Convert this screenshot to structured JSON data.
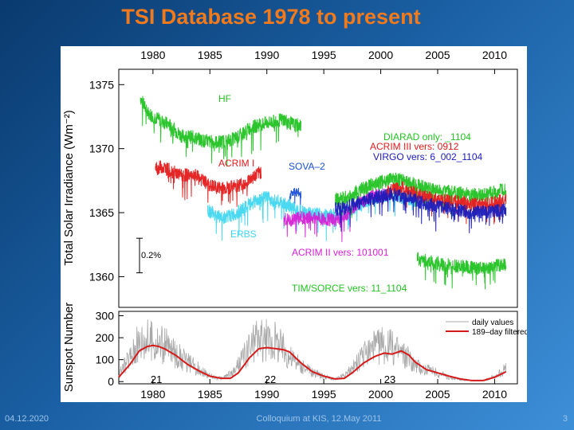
{
  "slide": {
    "title": "TSI Database 1978 to present",
    "footer_left": "04.12.2020",
    "footer_center": "Colloquium at KIS, 12.May 2011",
    "footer_right": "3"
  },
  "chart_data": [
    {
      "type": "line",
      "title": "",
      "xlabel": "",
      "ylabel": "Total Solar Irradiance (Wm⁻²)",
      "xlim": [
        1977,
        2012
      ],
      "ylim": [
        1357.6,
        1376.2
      ],
      "x_ticks": [
        1980,
        1985,
        1990,
        1995,
        2000,
        2005,
        2010
      ],
      "y_ticks": [
        1360,
        1365,
        1370,
        1375
      ],
      "scale_bar_label": "0.2%",
      "series": [
        {
          "name": "HF",
          "label": "HF",
          "color": "#22c222",
          "x": [
            1978.9,
            1979.5,
            1980.5,
            1981.5,
            1982.5,
            1983.5,
            1984.5,
            1985.5,
            1986.5,
            1987.5,
            1988.5,
            1989.5,
            1990.5,
            1991.5,
            1992.5,
            1993.0
          ],
          "values": [
            1374.0,
            1372.8,
            1372.3,
            1371.8,
            1371.0,
            1370.9,
            1370.6,
            1370.5,
            1370.6,
            1370.9,
            1371.6,
            1371.9,
            1372.1,
            1372.3,
            1371.8,
            1371.9
          ]
        },
        {
          "name": "ACRIM I",
          "label": "ACRIM I",
          "color": "#e31a1a",
          "x": [
            1980.2,
            1980.8,
            1981.5,
            1982.5,
            1983.5,
            1984.2,
            1985.0,
            1986.0,
            1987.0,
            1988.0,
            1989.0,
            1989.5
          ],
          "values": [
            1368.4,
            1368.6,
            1368.3,
            1367.9,
            1368.0,
            1367.6,
            1367.1,
            1366.9,
            1367.0,
            1367.3,
            1367.9,
            1368.2
          ]
        },
        {
          "name": "SOVA-2",
          "label": "SOVA–2",
          "color": "#1a4fd6",
          "x": [
            1992.0,
            1992.5,
            1993.0
          ],
          "values": [
            1366.4,
            1366.6,
            1366.5
          ]
        },
        {
          "name": "ERBS",
          "label": "ERBS",
          "color": "#41d6f0",
          "x": [
            1984.8,
            1986.0,
            1987.0,
            1988.0,
            1989.0,
            1990.0,
            1991.0,
            1992.0,
            1993.0,
            1994.0,
            1995.0,
            1996.0,
            1997.0,
            1998.0,
            1999.0,
            2000.0,
            2001.0,
            2002.0,
            2003.0
          ],
          "values": [
            1365.2,
            1364.6,
            1364.8,
            1365.3,
            1365.9,
            1366.2,
            1365.8,
            1365.5,
            1365.1,
            1364.9,
            1364.8,
            1364.8,
            1365.0,
            1365.5,
            1366.0,
            1366.3,
            1366.4,
            1366.2,
            1366.0
          ]
        },
        {
          "name": "ACRIM II",
          "label": "ACRIM II vers: 101001",
          "color": "#d520d5",
          "x": [
            1991.5,
            1992.0,
            1993.0,
            1994.0,
            1995.0,
            1996.0,
            1997.0,
            1998.0,
            1999.0,
            2000.0,
            2000.7
          ],
          "values": [
            1364.5,
            1364.4,
            1364.6,
            1364.6,
            1364.5,
            1364.4,
            1364.9,
            1365.7,
            1366.2,
            1366.5,
            1366.3
          ]
        },
        {
          "name": "DIARAD",
          "label": "DIARAD only: _1104",
          "color": "#22c222",
          "x": [
            1996.0,
            1997.0,
            1998.0,
            1999.0,
            2000.0,
            2001.0,
            2002.0,
            2003.0,
            2004.0,
            2005.0,
            2006.0,
            2007.0,
            2008.0,
            2009.0,
            2010.0,
            2011.0
          ],
          "values": [
            1366.0,
            1366.2,
            1366.7,
            1367.1,
            1367.4,
            1367.6,
            1367.5,
            1367.2,
            1366.9,
            1366.7,
            1366.6,
            1366.5,
            1366.4,
            1366.4,
            1366.6,
            1366.8
          ]
        },
        {
          "name": "ACRIM III",
          "label": "ACRIM III vers: 0912",
          "color": "#e31a1a",
          "x": [
            2000.5,
            2001.0,
            2002.0,
            2003.0,
            2004.0,
            2005.0,
            2006.0,
            2007.0,
            2008.0,
            2009.0,
            2010.0,
            2011.0
          ],
          "values": [
            1366.6,
            1366.8,
            1366.9,
            1366.5,
            1366.2,
            1366.0,
            1365.9,
            1365.8,
            1365.7,
            1365.6,
            1365.8,
            1366.0
          ]
        },
        {
          "name": "VIRGO",
          "label": "VIRGO vers: 6_002_1104",
          "color": "#1a1ab8",
          "x": [
            1996.0,
            1997.0,
            1998.0,
            1999.0,
            2000.0,
            2001.0,
            2002.0,
            2003.0,
            2004.0,
            2005.0,
            2006.0,
            2007.0,
            2008.0,
            2009.0,
            2010.0,
            2011.0
          ],
          "values": [
            1365.3,
            1365.4,
            1365.8,
            1366.1,
            1366.3,
            1366.4,
            1366.3,
            1366.0,
            1365.7,
            1365.5,
            1365.3,
            1365.2,
            1365.0,
            1365.0,
            1365.1,
            1365.2
          ]
        },
        {
          "name": "TIM/SORCE",
          "label": "TIM/SORCE vers: 11_1104",
          "color": "#22c222",
          "x": [
            2003.2,
            2004.0,
            2005.0,
            2006.0,
            2007.0,
            2008.0,
            2009.0,
            2010.0,
            2011.0
          ],
          "values": [
            1361.4,
            1361.2,
            1361.0,
            1360.9,
            1360.8,
            1360.7,
            1360.6,
            1360.8,
            1361.0
          ]
        }
      ]
    },
    {
      "type": "line",
      "title": "",
      "xlabel": "",
      "ylabel": "Sunspot Number",
      "xlim": [
        1977,
        2012
      ],
      "ylim": [
        -10,
        320
      ],
      "x_ticks": [
        1980,
        1985,
        1990,
        1995,
        2000,
        2005,
        2010
      ],
      "y_ticks": [
        0,
        100,
        200,
        300
      ],
      "legend": [
        "daily values",
        "189–day filtered"
      ],
      "legend_position": "top-right",
      "cycle_annotations": [
        {
          "label": "21",
          "x": 1980.3,
          "y": 5
        },
        {
          "label": "22",
          "x": 1990.3,
          "y": 5
        },
        {
          "label": "23",
          "x": 2000.8,
          "y": 5
        }
      ],
      "series": [
        {
          "name": "daily values",
          "color": "#a8a8a8",
          "x": [
            1977.0,
            1978.0,
            1979.0,
            1980.0,
            1981.0,
            1982.0,
            1983.0,
            1984.0,
            1985.0,
            1986.0,
            1987.0,
            1988.0,
            1989.0,
            1990.0,
            1991.0,
            1992.0,
            1993.0,
            1994.0,
            1995.0,
            1996.0,
            1997.0,
            1998.0,
            1999.0,
            2000.0,
            2001.0,
            2002.0,
            2003.0,
            2004.0,
            2005.0,
            2006.0,
            2007.0,
            2008.0,
            2009.0,
            2010.0,
            2011.0
          ],
          "values": [
            30,
            120,
            200,
            190,
            170,
            130,
            90,
            60,
            25,
            15,
            40,
            120,
            200,
            190,
            180,
            120,
            70,
            45,
            25,
            10,
            35,
            90,
            150,
            170,
            160,
            130,
            80,
            55,
            40,
            20,
            10,
            5,
            5,
            25,
            60
          ]
        },
        {
          "name": "189-day filtered",
          "color": "#d61a1a",
          "x": [
            1977.0,
            1978.0,
            1978.8,
            1979.5,
            1980.0,
            1980.5,
            1981.0,
            1982.0,
            1983.0,
            1984.0,
            1985.0,
            1986.0,
            1986.8,
            1987.5,
            1988.5,
            1989.3,
            1990.0,
            1990.8,
            1991.5,
            1992.0,
            1993.0,
            1994.0,
            1995.0,
            1996.0,
            1996.8,
            1997.5,
            1998.5,
            1999.5,
            2000.3,
            2001.0,
            2001.8,
            2002.5,
            2003.0,
            2004.0,
            2005.0,
            2006.0,
            2007.0,
            2008.0,
            2009.0,
            2010.0,
            2011.0
          ],
          "values": [
            20,
            80,
            140,
            160,
            165,
            160,
            150,
            120,
            80,
            50,
            25,
            15,
            15,
            40,
            110,
            150,
            155,
            150,
            145,
            135,
            85,
            45,
            25,
            12,
            15,
            40,
            85,
            115,
            130,
            125,
            140,
            120,
            90,
            55,
            40,
            25,
            12,
            5,
            5,
            20,
            45
          ]
        }
      ]
    }
  ]
}
